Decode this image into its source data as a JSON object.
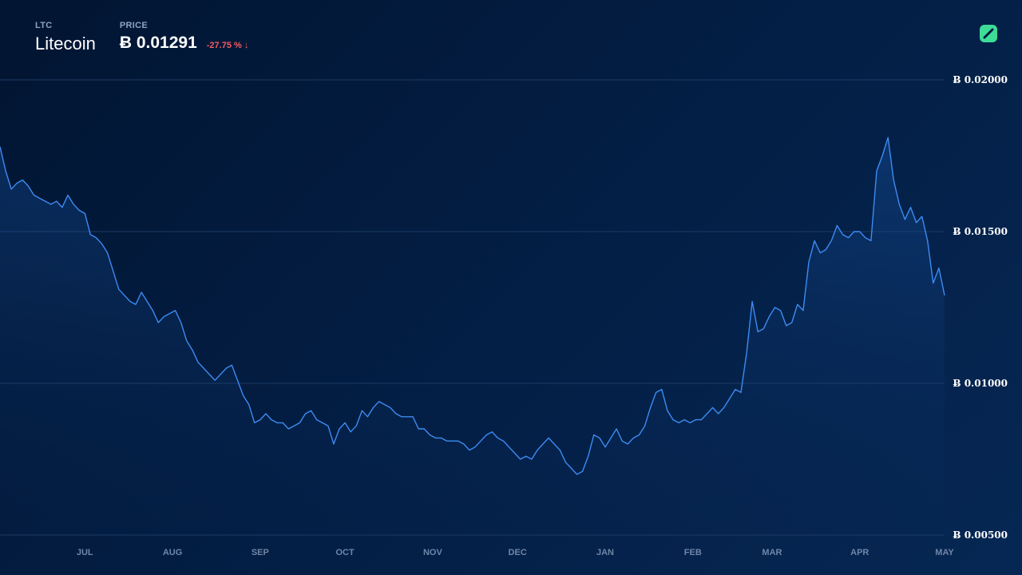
{
  "header": {
    "symbol": "LTC",
    "name": "Litecoin",
    "price_label": "PRICE",
    "price": "Ƀ 0.01291",
    "change": "-27.75 % ↓"
  },
  "colors": {
    "line": "#3d8bf2",
    "grid": "#1d3a63",
    "negative": "#f25c64",
    "logo": "#3ddc97"
  },
  "chart_data": {
    "type": "area",
    "ylim": [
      0.005,
      0.02
    ],
    "yticks": [
      0.005,
      0.01,
      0.015,
      0.02
    ],
    "ytick_labels": [
      "Ƀ 0.00500",
      "Ƀ 0.01000",
      "Ƀ 0.01500",
      "Ƀ 0.02000"
    ],
    "x_start": "2021-06-01",
    "x_end": "2022-05-01",
    "xticks": [
      "2021-07-01",
      "2021-08-01",
      "2021-09-01",
      "2021-10-01",
      "2021-11-01",
      "2021-12-01",
      "2022-01-01",
      "2022-02-01",
      "2022-03-01",
      "2022-04-01",
      "2022-05-01"
    ],
    "xtick_labels": [
      "JUL",
      "AUG",
      "SEP",
      "OCT",
      "NOV",
      "DEC",
      "JAN",
      "FEB",
      "MAR",
      "APR",
      "MAY"
    ],
    "grid": true,
    "series": [
      {
        "points": [
          [
            "2021-06-01",
            0.0178
          ],
          [
            "2021-06-03",
            0.017
          ],
          [
            "2021-06-05",
            0.0164
          ],
          [
            "2021-06-07",
            0.0166
          ],
          [
            "2021-06-09",
            0.0167
          ],
          [
            "2021-06-11",
            0.0165
          ],
          [
            "2021-06-13",
            0.0162
          ],
          [
            "2021-06-15",
            0.0161
          ],
          [
            "2021-06-17",
            0.016
          ],
          [
            "2021-06-19",
            0.0159
          ],
          [
            "2021-06-21",
            0.016
          ],
          [
            "2021-06-23",
            0.0158
          ],
          [
            "2021-06-25",
            0.0162
          ],
          [
            "2021-06-27",
            0.0159
          ],
          [
            "2021-06-29",
            0.0157
          ],
          [
            "2021-07-01",
            0.0156
          ],
          [
            "2021-07-03",
            0.0149
          ],
          [
            "2021-07-05",
            0.0148
          ],
          [
            "2021-07-07",
            0.0146
          ],
          [
            "2021-07-09",
            0.0143
          ],
          [
            "2021-07-11",
            0.0137
          ],
          [
            "2021-07-13",
            0.0131
          ],
          [
            "2021-07-15",
            0.0129
          ],
          [
            "2021-07-17",
            0.0127
          ],
          [
            "2021-07-19",
            0.0126
          ],
          [
            "2021-07-21",
            0.013
          ],
          [
            "2021-07-23",
            0.0127
          ],
          [
            "2021-07-25",
            0.0124
          ],
          [
            "2021-07-27",
            0.012
          ],
          [
            "2021-07-29",
            0.0122
          ],
          [
            "2021-07-31",
            0.0123
          ],
          [
            "2021-08-02",
            0.0124
          ],
          [
            "2021-08-04",
            0.012
          ],
          [
            "2021-08-06",
            0.0114
          ],
          [
            "2021-08-08",
            0.0111
          ],
          [
            "2021-08-10",
            0.0107
          ],
          [
            "2021-08-12",
            0.0105
          ],
          [
            "2021-08-14",
            0.0103
          ],
          [
            "2021-08-16",
            0.0101
          ],
          [
            "2021-08-18",
            0.0103
          ],
          [
            "2021-08-20",
            0.0105
          ],
          [
            "2021-08-22",
            0.0106
          ],
          [
            "2021-08-24",
            0.0101
          ],
          [
            "2021-08-26",
            0.0096
          ],
          [
            "2021-08-28",
            0.0093
          ],
          [
            "2021-08-30",
            0.0087
          ],
          [
            "2021-09-01",
            0.0088
          ],
          [
            "2021-09-03",
            0.009
          ],
          [
            "2021-09-05",
            0.0088
          ],
          [
            "2021-09-07",
            0.0087
          ],
          [
            "2021-09-09",
            0.0087
          ],
          [
            "2021-09-11",
            0.0085
          ],
          [
            "2021-09-13",
            0.0086
          ],
          [
            "2021-09-15",
            0.0087
          ],
          [
            "2021-09-17",
            0.009
          ],
          [
            "2021-09-19",
            0.0091
          ],
          [
            "2021-09-21",
            0.0088
          ],
          [
            "2021-09-23",
            0.0087
          ],
          [
            "2021-09-25",
            0.0086
          ],
          [
            "2021-09-27",
            0.008
          ],
          [
            "2021-09-29",
            0.0085
          ],
          [
            "2021-10-01",
            0.0087
          ],
          [
            "2021-10-03",
            0.0084
          ],
          [
            "2021-10-05",
            0.0086
          ],
          [
            "2021-10-07",
            0.0091
          ],
          [
            "2021-10-09",
            0.0089
          ],
          [
            "2021-10-11",
            0.0092
          ],
          [
            "2021-10-13",
            0.0094
          ],
          [
            "2021-10-15",
            0.0093
          ],
          [
            "2021-10-17",
            0.0092
          ],
          [
            "2021-10-19",
            0.009
          ],
          [
            "2021-10-21",
            0.0089
          ],
          [
            "2021-10-23",
            0.0089
          ],
          [
            "2021-10-25",
            0.0089
          ],
          [
            "2021-10-27",
            0.0085
          ],
          [
            "2021-10-29",
            0.0085
          ],
          [
            "2021-10-31",
            0.0083
          ],
          [
            "2021-11-02",
            0.0082
          ],
          [
            "2021-11-04",
            0.0082
          ],
          [
            "2021-11-06",
            0.0081
          ],
          [
            "2021-11-08",
            0.0081
          ],
          [
            "2021-11-10",
            0.0081
          ],
          [
            "2021-11-12",
            0.008
          ],
          [
            "2021-11-14",
            0.0078
          ],
          [
            "2021-11-16",
            0.0079
          ],
          [
            "2021-11-18",
            0.0081
          ],
          [
            "2021-11-20",
            0.0083
          ],
          [
            "2021-11-22",
            0.0084
          ],
          [
            "2021-11-24",
            0.0082
          ],
          [
            "2021-11-26",
            0.0081
          ],
          [
            "2021-11-28",
            0.0079
          ],
          [
            "2021-11-30",
            0.0077
          ],
          [
            "2021-12-02",
            0.0075
          ],
          [
            "2021-12-04",
            0.0076
          ],
          [
            "2021-12-06",
            0.0075
          ],
          [
            "2021-12-08",
            0.0078
          ],
          [
            "2021-12-10",
            0.008
          ],
          [
            "2021-12-12",
            0.0082
          ],
          [
            "2021-12-14",
            0.008
          ],
          [
            "2021-12-16",
            0.0078
          ],
          [
            "2021-12-18",
            0.0074
          ],
          [
            "2021-12-20",
            0.0072
          ],
          [
            "2021-12-22",
            0.007
          ],
          [
            "2021-12-24",
            0.0071
          ],
          [
            "2021-12-26",
            0.0076
          ],
          [
            "2021-12-28",
            0.0083
          ],
          [
            "2021-12-30",
            0.0082
          ],
          [
            "2022-01-01",
            0.0079
          ],
          [
            "2022-01-03",
            0.0082
          ],
          [
            "2022-01-05",
            0.0085
          ],
          [
            "2022-01-07",
            0.0081
          ],
          [
            "2022-01-09",
            0.008
          ],
          [
            "2022-01-11",
            0.0082
          ],
          [
            "2022-01-13",
            0.0083
          ],
          [
            "2022-01-15",
            0.0086
          ],
          [
            "2022-01-17",
            0.0092
          ],
          [
            "2022-01-19",
            0.0097
          ],
          [
            "2022-01-21",
            0.0098
          ],
          [
            "2022-01-23",
            0.0091
          ],
          [
            "2022-01-25",
            0.0088
          ],
          [
            "2022-01-27",
            0.0087
          ],
          [
            "2022-01-29",
            0.0088
          ],
          [
            "2022-01-31",
            0.0087
          ],
          [
            "2022-02-02",
            0.0088
          ],
          [
            "2022-02-04",
            0.0088
          ],
          [
            "2022-02-06",
            0.009
          ],
          [
            "2022-02-08",
            0.0092
          ],
          [
            "2022-02-10",
            0.009
          ],
          [
            "2022-02-12",
            0.0092
          ],
          [
            "2022-02-14",
            0.0095
          ],
          [
            "2022-02-16",
            0.0098
          ],
          [
            "2022-02-18",
            0.0097
          ],
          [
            "2022-02-20",
            0.011
          ],
          [
            "2022-02-22",
            0.0127
          ],
          [
            "2022-02-24",
            0.0117
          ],
          [
            "2022-02-26",
            0.0118
          ],
          [
            "2022-02-28",
            0.0122
          ],
          [
            "2022-03-02",
            0.0125
          ],
          [
            "2022-03-04",
            0.0124
          ],
          [
            "2022-03-06",
            0.0119
          ],
          [
            "2022-03-08",
            0.012
          ],
          [
            "2022-03-10",
            0.0126
          ],
          [
            "2022-03-12",
            0.0124
          ],
          [
            "2022-03-14",
            0.014
          ],
          [
            "2022-03-16",
            0.0147
          ],
          [
            "2022-03-18",
            0.0143
          ],
          [
            "2022-03-20",
            0.0144
          ],
          [
            "2022-03-22",
            0.0147
          ],
          [
            "2022-03-24",
            0.0152
          ],
          [
            "2022-03-26",
            0.0149
          ],
          [
            "2022-03-28",
            0.0148
          ],
          [
            "2022-03-30",
            0.015
          ],
          [
            "2022-04-01",
            0.015
          ],
          [
            "2022-04-03",
            0.0148
          ],
          [
            "2022-04-05",
            0.0147
          ],
          [
            "2022-04-07",
            0.017
          ],
          [
            "2022-04-09",
            0.0175
          ],
          [
            "2022-04-11",
            0.0181
          ],
          [
            "2022-04-13",
            0.0167
          ],
          [
            "2022-04-15",
            0.0159
          ],
          [
            "2022-04-17",
            0.0154
          ],
          [
            "2022-04-19",
            0.0158
          ],
          [
            "2022-04-21",
            0.0153
          ],
          [
            "2022-04-23",
            0.0155
          ],
          [
            "2022-04-25",
            0.0147
          ],
          [
            "2022-04-27",
            0.0133
          ],
          [
            "2022-04-29",
            0.0138
          ],
          [
            "2022-05-01",
            0.0129
          ]
        ]
      }
    ]
  }
}
